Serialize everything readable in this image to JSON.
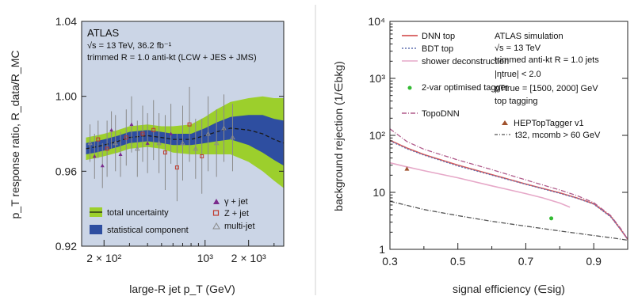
{
  "chart_data": [
    {
      "type": "line",
      "panel": "left",
      "xscale": "log",
      "xlim": [
        140,
        3500
      ],
      "ylim": [
        0.92,
        1.04
      ],
      "xlabel": "large-R jet p_T (GeV)",
      "ylabel": "p_T response ratio, R_data/R_MC",
      "x_ticks": [
        "2 × 10²",
        "10³",
        "2 × 10³"
      ],
      "x_tick_values": [
        200,
        1000,
        2000
      ],
      "y_ticks": [
        "0.92",
        "0.96",
        "1.00",
        "1.04"
      ],
      "y_tick_values": [
        0.92,
        0.96,
        1.0,
        1.04
      ],
      "annotations": [
        "ATLAS",
        "√s = 13 TeV, 36.2 fb⁻¹",
        "trimmed R = 1.0 anti-kt (LCW + JES + JMS)"
      ],
      "legend": {
        "placement": "bottom-left",
        "entries": [
          "total uncertainty",
          "statistical component",
          "γ + jet",
          "Z + jet",
          "multi-jet"
        ]
      },
      "colors": {
        "background": "#cbd5e6",
        "total_uncertainty": "#9ccf2c",
        "statistical": "#2e4ea0",
        "central": "#1a1a1a",
        "gamma_jet": "#7a2b8c",
        "z_jet": "#c0392b",
        "multijet": "#8a8a8a"
      },
      "x": [
        150,
        175,
        200,
        250,
        300,
        400,
        500,
        600,
        800,
        1000,
        1200,
        1500,
        2000,
        2500,
        3000,
        3500
      ],
      "central": [
        0.972,
        0.973,
        0.974,
        0.976,
        0.978,
        0.979,
        0.978,
        0.977,
        0.977,
        0.979,
        0.981,
        0.983,
        0.982,
        0.98,
        0.977,
        0.975
      ],
      "total_uncertainty": [
        0.006,
        0.006,
        0.006,
        0.006,
        0.006,
        0.006,
        0.006,
        0.007,
        0.008,
        0.01,
        0.012,
        0.014,
        0.017,
        0.02,
        0.022,
        0.024
      ],
      "statistical_uncertainty": [
        0.003,
        0.003,
        0.003,
        0.003,
        0.003,
        0.003,
        0.003,
        0.003,
        0.003,
        0.004,
        0.005,
        0.006,
        0.008,
        0.01,
        0.011,
        0.012
      ],
      "points": [
        {
          "x": 160,
          "y": 0.975,
          "err": 0.01,
          "type": "multi-jet"
        },
        {
          "x": 172,
          "y": 0.968,
          "err": 0.012,
          "type": "gamma-jet"
        },
        {
          "x": 182,
          "y": 0.977,
          "err": 0.01,
          "type": "z-jet"
        },
        {
          "x": 195,
          "y": 0.963,
          "err": 0.012,
          "type": "gamma-jet"
        },
        {
          "x": 210,
          "y": 0.972,
          "err": 0.015,
          "type": "z-jet"
        },
        {
          "x": 225,
          "y": 0.982,
          "err": 0.01,
          "type": "gamma-jet"
        },
        {
          "x": 240,
          "y": 0.975,
          "err": 0.015,
          "type": "multi-jet"
        },
        {
          "x": 260,
          "y": 0.969,
          "err": 0.012,
          "type": "gamma-jet"
        },
        {
          "x": 285,
          "y": 0.978,
          "err": 0.015,
          "type": "z-jet"
        },
        {
          "x": 310,
          "y": 0.985,
          "err": 0.015,
          "type": "gamma-jet"
        },
        {
          "x": 340,
          "y": 0.972,
          "err": 0.015,
          "type": "multi-jet"
        },
        {
          "x": 370,
          "y": 0.98,
          "err": 0.015,
          "type": "z-jet"
        },
        {
          "x": 400,
          "y": 0.975,
          "err": 0.016,
          "type": "gamma-jet"
        },
        {
          "x": 440,
          "y": 0.982,
          "err": 0.016,
          "type": "z-jet"
        },
        {
          "x": 480,
          "y": 0.975,
          "err": 0.016,
          "type": "multi-jet"
        },
        {
          "x": 530,
          "y": 0.97,
          "err": 0.02,
          "type": "z-jet"
        },
        {
          "x": 580,
          "y": 0.98,
          "err": 0.016,
          "type": "gamma-jet"
        },
        {
          "x": 640,
          "y": 0.962,
          "err": 0.018,
          "type": "z-jet"
        },
        {
          "x": 700,
          "y": 0.975,
          "err": 0.02,
          "type": "multi-jet"
        },
        {
          "x": 780,
          "y": 0.985,
          "err": 0.02,
          "type": "z-jet"
        },
        {
          "x": 860,
          "y": 0.972,
          "err": 0.016,
          "type": "multi-jet"
        },
        {
          "x": 950,
          "y": 0.968,
          "err": 0.02,
          "type": "z-jet"
        },
        {
          "x": 1050,
          "y": 0.98,
          "err": 0.02,
          "type": "multi-jet"
        },
        {
          "x": 1200,
          "y": 0.975,
          "err": 0.018,
          "type": "multi-jet"
        },
        {
          "x": 1350,
          "y": 0.983,
          "err": 0.018,
          "type": "multi-jet"
        },
        {
          "x": 1550,
          "y": 0.978,
          "err": 0.018,
          "type": "multi-jet"
        }
      ]
    },
    {
      "type": "line",
      "panel": "right",
      "yscale": "log",
      "xlim": [
        0.3,
        1.0
      ],
      "ylim": [
        1,
        10000
      ],
      "xlabel": "signal efficiency (∈sig)",
      "ylabel": "background rejection (1/∈bkg)",
      "x_ticks": [
        "0.3",
        "0.5",
        "0.7",
        "0.9"
      ],
      "x_tick_values": [
        0.3,
        0.5,
        0.7,
        0.9
      ],
      "y_ticks": [
        "1",
        "10",
        "10²",
        "10³",
        "10⁴"
      ],
      "y_tick_values": [
        1,
        10,
        100,
        1000,
        10000
      ],
      "annotations": [
        "ATLAS simulation",
        "√s = 13 TeV",
        "trimmed anti-kt R = 1.0 jets",
        "|ηtrue| < 2.0",
        "pTtrue = [1500, 2000] GeV",
        "top tagging"
      ],
      "legend": {
        "placement": "top",
        "entries": [
          "DNN top",
          "BDT top",
          "shower deconstruction",
          "2-var optimised tagger",
          "TopoDNN",
          "HEPTopTagger v1",
          "t32, mcomb > 60 GeV"
        ]
      },
      "series": [
        {
          "name": "DNN top",
          "color": "#d65a5a",
          "style": "solid",
          "x": [
            0.3,
            0.35,
            0.4,
            0.5,
            0.6,
            0.7,
            0.8,
            0.85,
            0.9,
            0.95,
            0.98,
            1.0
          ],
          "y": [
            82,
            60,
            46,
            30,
            20.5,
            14,
            9.8,
            8,
            6.3,
            3.8,
            2.2,
            1.5
          ]
        },
        {
          "name": "BDT top",
          "color": "#6070b0",
          "style": "dashed",
          "x": [
            0.3,
            0.35,
            0.4,
            0.5,
            0.6,
            0.7,
            0.8,
            0.85,
            0.9,
            0.95,
            0.98,
            1.0
          ],
          "y": [
            80,
            58,
            45,
            29,
            20,
            13.8,
            9.6,
            7.9,
            6.2,
            3.7,
            2.2,
            1.5
          ]
        },
        {
          "name": "shower deconstruction",
          "color": "#e6a8c8",
          "style": "solid",
          "x": [
            0.3,
            0.35,
            0.4,
            0.5,
            0.6,
            0.7,
            0.75,
            0.8,
            0.83
          ],
          "y": [
            33,
            28,
            24,
            18,
            13,
            9.5,
            8,
            6.5,
            5.5
          ]
        },
        {
          "name": "TopoDNN",
          "color": "#b05a8a",
          "style": "dashdot",
          "x": [
            0.3,
            0.35,
            0.4,
            0.5,
            0.6,
            0.7,
            0.8,
            0.85,
            0.9,
            0.95,
            0.98,
            1.0
          ],
          "y": [
            130,
            78,
            57,
            37,
            25,
            16.5,
            11,
            8.8,
            6.6,
            3.9,
            2.3,
            1.5
          ]
        },
        {
          "name": "t32, mcomb > 60 GeV",
          "color": "#555555",
          "style": "dashdot",
          "x": [
            0.3,
            0.4,
            0.5,
            0.6,
            0.7,
            0.8,
            0.9,
            0.95,
            1.0
          ],
          "y": [
            7,
            5,
            3.9,
            3.1,
            2.55,
            2.1,
            1.75,
            1.6,
            1.45
          ]
        }
      ],
      "points": [
        {
          "name": "2-var optimised tagger",
          "color": "#33bb33",
          "marker": "circle",
          "x": 0.775,
          "y": 3.5
        },
        {
          "name": "HEPTopTagger v1",
          "color": "#a0522d",
          "marker": "triangle",
          "x": 0.35,
          "y": 26
        }
      ]
    }
  ]
}
